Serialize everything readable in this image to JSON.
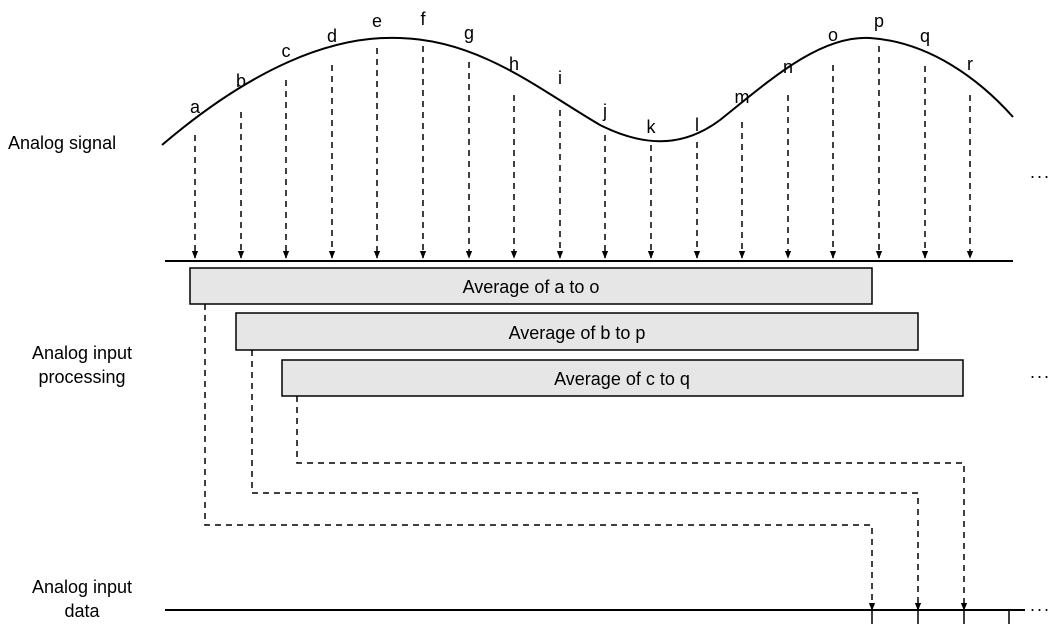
{
  "labels": {
    "analog_signal": "Analog signal",
    "input_processing_line1": "Analog input",
    "input_processing_line2": "processing",
    "input_data_line1": "Analog input",
    "input_data_line2": "data"
  },
  "samples": [
    "a",
    "b",
    "c",
    "d",
    "e",
    "f",
    "g",
    "h",
    "i",
    "j",
    "k",
    "l",
    "m",
    "n",
    "o",
    "p",
    "q",
    "r"
  ],
  "averages": [
    "Average of a to o",
    "Average of b to p",
    "Average of c to q"
  ],
  "ellipsis": "..."
}
